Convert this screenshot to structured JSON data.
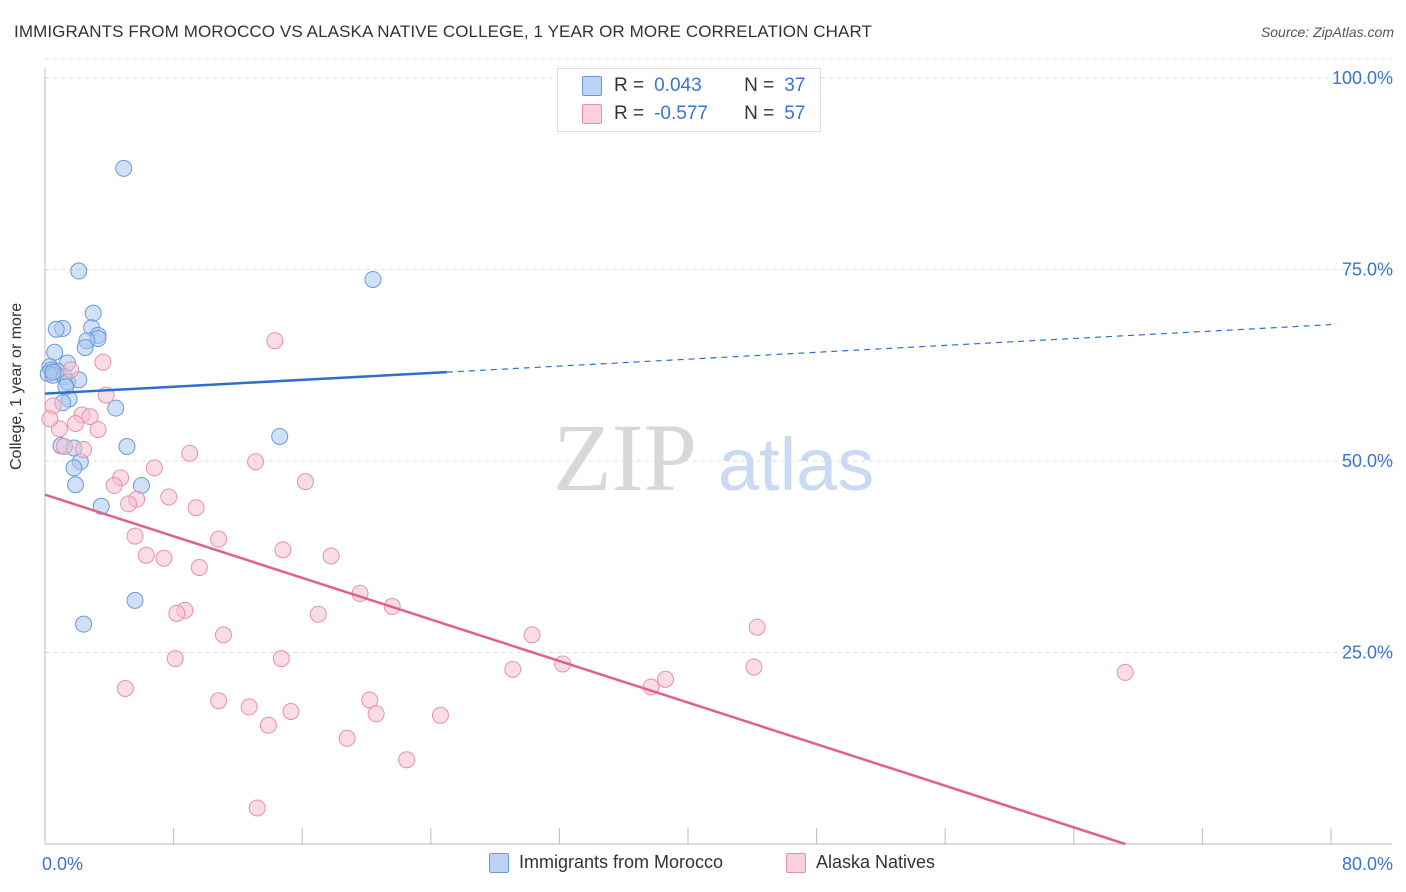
{
  "header": {
    "title": "IMMIGRANTS FROM MOROCCO VS ALASKA NATIVE COLLEGE, 1 YEAR OR MORE CORRELATION CHART",
    "source": "Source: ZipAtlas.com"
  },
  "legend": {
    "rows": [
      {
        "r_label": "R =",
        "r_value": "0.043",
        "n_label": "N =",
        "n_value": "37"
      },
      {
        "r_label": "R =",
        "r_value": "-0.577",
        "n_label": "N =",
        "n_value": "57"
      }
    ]
  },
  "bottom_legend": {
    "items": [
      {
        "label": "Immigrants from Morocco"
      },
      {
        "label": "Alaska Natives"
      }
    ]
  },
  "watermark": {
    "zip": "ZIP",
    "atlas": "atlas"
  },
  "colors": {
    "blue_fill": "#a9c8f0",
    "blue_stroke": "#6a9ad8",
    "blue_line": "#2f6fcc",
    "pink_fill": "#f6bfd0",
    "pink_stroke": "#e890ae",
    "pink_line": "#e0608a",
    "axis_text": "#3a74cc",
    "grid": "#dddddd"
  },
  "chart_data": {
    "type": "scatter",
    "title": "IMMIGRANTS FROM MOROCCO VS ALASKA NATIVE COLLEGE, 1 YEAR OR MORE CORRELATION CHART",
    "xlabel": "",
    "ylabel": "College, 1 year or more",
    "xlim": [
      0,
      80
    ],
    "ylim": [
      0,
      100
    ],
    "x_tick_labels": [
      "0.0%",
      "80.0%"
    ],
    "y_tick_labels": [
      "25.0%",
      "50.0%",
      "75.0%",
      "100.0%"
    ],
    "y_ticks": [
      25,
      50,
      75,
      100
    ],
    "grid": true,
    "series": [
      {
        "name": "Immigrants from Morocco",
        "color": "blue",
        "r": 0.043,
        "n": 37,
        "trend": {
          "x0": 0,
          "y0": 58.8,
          "x1": 25,
          "y1": 61.6,
          "x_dashed_end": 80,
          "y_dashed_end": 67.8
        },
        "points": [
          [
            4.9,
            88.2
          ],
          [
            2.1,
            74.8
          ],
          [
            20.4,
            73.7
          ],
          [
            3.0,
            69.3
          ],
          [
            1.1,
            67.3
          ],
          [
            0.7,
            67.2
          ],
          [
            2.9,
            67.4
          ],
          [
            3.3,
            66.4
          ],
          [
            3.3,
            66.0
          ],
          [
            2.6,
            65.7
          ],
          [
            2.5,
            64.8
          ],
          [
            0.6,
            64.2
          ],
          [
            1.4,
            62.8
          ],
          [
            0.3,
            62.3
          ],
          [
            0.4,
            61.9
          ],
          [
            0.8,
            61.7
          ],
          [
            0.2,
            61.4
          ],
          [
            0.5,
            61.2
          ],
          [
            1.2,
            61.0
          ],
          [
            1.4,
            60.3
          ],
          [
            2.1,
            60.6
          ],
          [
            1.3,
            59.7
          ],
          [
            1.5,
            58.1
          ],
          [
            1.1,
            57.6
          ],
          [
            4.4,
            56.9
          ],
          [
            14.6,
            53.2
          ],
          [
            1.0,
            52.0
          ],
          [
            1.8,
            51.7
          ],
          [
            5.1,
            51.9
          ],
          [
            2.2,
            49.9
          ],
          [
            1.8,
            49.1
          ],
          [
            6.0,
            46.8
          ],
          [
            1.9,
            46.9
          ],
          [
            3.5,
            44.1
          ],
          [
            5.6,
            31.8
          ],
          [
            2.4,
            28.7
          ],
          [
            0.5,
            61.6
          ]
        ]
      },
      {
        "name": "Alaska Natives",
        "color": "pink",
        "r": -0.577,
        "n": 57,
        "trend": {
          "x0": 0,
          "y0": 45.6,
          "x1": 67.2,
          "y1": 0
        },
        "points": [
          [
            14.3,
            65.7
          ],
          [
            3.6,
            62.9
          ],
          [
            1.6,
            61.9
          ],
          [
            0.5,
            57.2
          ],
          [
            3.8,
            58.6
          ],
          [
            2.3,
            56.0
          ],
          [
            2.8,
            55.8
          ],
          [
            0.9,
            54.2
          ],
          [
            1.9,
            54.9
          ],
          [
            3.3,
            54.1
          ],
          [
            2.4,
            51.5
          ],
          [
            1.2,
            51.9
          ],
          [
            9.0,
            51.0
          ],
          [
            13.1,
            49.9
          ],
          [
            6.8,
            49.1
          ],
          [
            4.7,
            47.8
          ],
          [
            16.2,
            47.3
          ],
          [
            4.3,
            46.8
          ],
          [
            7.7,
            45.3
          ],
          [
            5.7,
            45.0
          ],
          [
            5.2,
            44.4
          ],
          [
            9.4,
            43.9
          ],
          [
            5.6,
            40.2
          ],
          [
            10.8,
            39.8
          ],
          [
            14.8,
            38.4
          ],
          [
            6.3,
            37.7
          ],
          [
            17.8,
            37.6
          ],
          [
            7.4,
            37.3
          ],
          [
            9.6,
            36.1
          ],
          [
            19.6,
            32.7
          ],
          [
            21.6,
            31.0
          ],
          [
            8.7,
            30.5
          ],
          [
            8.2,
            30.1
          ],
          [
            17.0,
            30.0
          ],
          [
            44.3,
            28.3
          ],
          [
            11.1,
            27.3
          ],
          [
            30.3,
            27.3
          ],
          [
            8.1,
            24.2
          ],
          [
            14.7,
            24.2
          ],
          [
            32.2,
            23.5
          ],
          [
            44.1,
            23.1
          ],
          [
            29.1,
            22.8
          ],
          [
            67.2,
            22.4
          ],
          [
            38.6,
            21.5
          ],
          [
            37.7,
            20.5
          ],
          [
            5.0,
            20.3
          ],
          [
            10.8,
            18.7
          ],
          [
            20.2,
            18.8
          ],
          [
            12.7,
            17.9
          ],
          [
            15.3,
            17.3
          ],
          [
            20.6,
            17.0
          ],
          [
            24.6,
            16.8
          ],
          [
            13.9,
            15.5
          ],
          [
            18.8,
            13.8
          ],
          [
            22.5,
            11.0
          ],
          [
            13.2,
            4.7
          ],
          [
            0.3,
            55.5
          ]
        ]
      }
    ]
  }
}
